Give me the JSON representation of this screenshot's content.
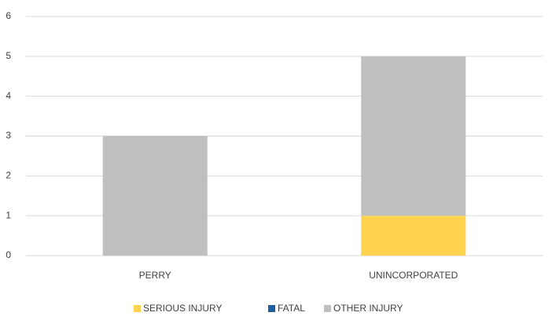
{
  "chart_data": {
    "type": "stacked_bar",
    "categories": [
      "PERRY",
      "UNINCORPORATED"
    ],
    "series": [
      {
        "name": "SERIOUS INJURY",
        "color": "#ffd34f",
        "values": [
          0,
          1
        ]
      },
      {
        "name": "FATAL",
        "color": "#1f5fa0",
        "values": [
          0,
          0
        ]
      },
      {
        "name": "OTHER INJURY",
        "color": "#bfbfbf",
        "values": [
          3,
          4
        ]
      }
    ],
    "ylim": [
      0,
      6
    ],
    "yticks": [
      0,
      1,
      2,
      3,
      4,
      5,
      6
    ],
    "grid": true,
    "legend": "bottom"
  }
}
